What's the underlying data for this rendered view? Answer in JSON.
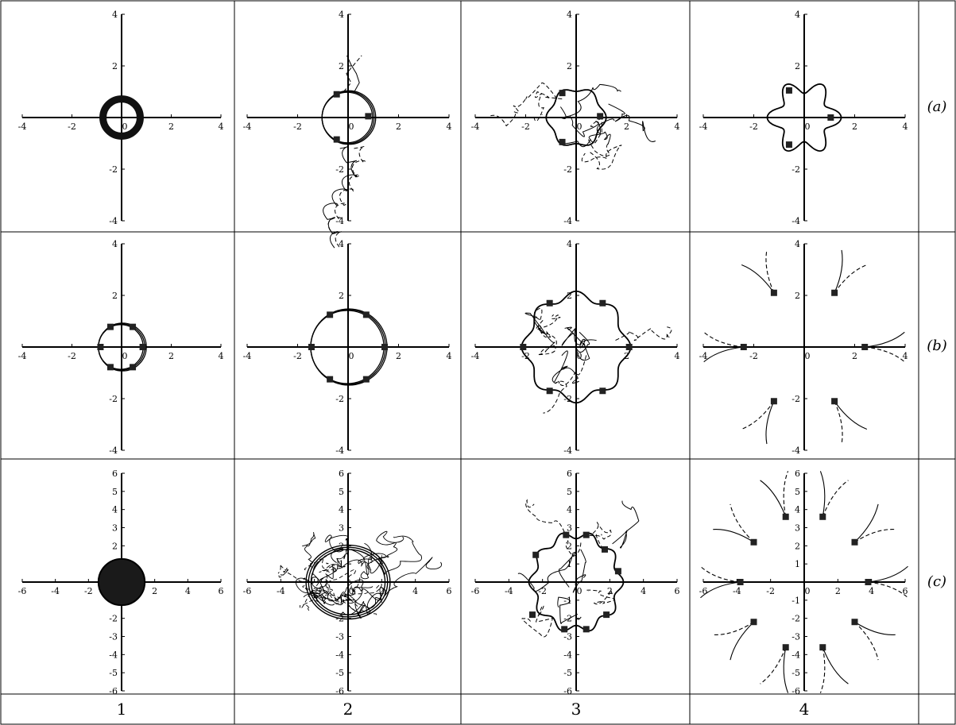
{
  "rows": [
    {
      "label": "(a)"
    },
    {
      "label": "(b)"
    },
    {
      "label": "(c)"
    }
  ],
  "columns": [
    {
      "label": "1"
    },
    {
      "label": "2"
    },
    {
      "label": "3"
    },
    {
      "label": "4"
    }
  ],
  "chart_data": [
    {
      "type": "scatter",
      "row": "(a)",
      "column": "1",
      "xlim": [
        -4,
        4
      ],
      "ylim": [
        -4,
        4
      ],
      "x_ticks": [
        "-4",
        "-2",
        "0",
        "2",
        "4"
      ],
      "y_ticks": [
        "4",
        "2",
        "-2",
        "-4"
      ],
      "curves": [
        {
          "kind": "thick-ring",
          "center": [
            0,
            0
          ],
          "radius": 0.75
        }
      ],
      "squares": []
    },
    {
      "type": "scatter",
      "row": "(a)",
      "column": "2",
      "xlim": [
        -4,
        4
      ],
      "ylim": [
        -4,
        4
      ],
      "x_ticks": [
        "-4",
        "-2",
        "0",
        "2",
        "4"
      ],
      "y_ticks": [
        "4",
        "2",
        "-2",
        "-4"
      ],
      "curves": [
        {
          "kind": "ring",
          "center": [
            0,
            0
          ],
          "radius": 1.0
        },
        {
          "kind": "loops-down",
          "dashed": false
        },
        {
          "kind": "loops-down",
          "dashed": true
        }
      ],
      "squares": [
        [
          -0.45,
          0.9
        ],
        [
          0.8,
          0.05
        ],
        [
          -0.45,
          -0.85
        ]
      ]
    },
    {
      "type": "scatter",
      "row": "(a)",
      "column": "3",
      "xlim": [
        -4,
        4
      ],
      "ylim": [
        -4,
        4
      ],
      "x_ticks": [
        "-4",
        "-2",
        "0",
        "2",
        "4"
      ],
      "y_ticks": [
        "4",
        "2",
        "-2",
        "-4"
      ],
      "curves": [
        {
          "kind": "wavy-ring",
          "center": [
            0,
            0
          ],
          "radius": 1.1,
          "lobes": 6
        }
      ],
      "squares": [
        [
          -0.55,
          0.95
        ],
        [
          0.95,
          0.05
        ],
        [
          -0.55,
          -0.95
        ]
      ]
    },
    {
      "type": "scatter",
      "row": "(a)",
      "column": "4",
      "xlim": [
        -4,
        4
      ],
      "ylim": [
        -4,
        4
      ],
      "x_ticks": [
        "-4",
        "-2",
        "0",
        "2",
        "4"
      ],
      "y_ticks": [
        "4",
        "2",
        "-2",
        "-4"
      ],
      "curves": [
        {
          "kind": "star",
          "center": [
            0,
            0
          ],
          "radius": 1.2,
          "lobes": 6
        }
      ],
      "squares": [
        [
          -0.6,
          1.05
        ],
        [
          1.05,
          0.0
        ],
        [
          -0.6,
          -1.05
        ]
      ]
    },
    {
      "type": "scatter",
      "row": "(b)",
      "column": "1",
      "xlim": [
        -4,
        4
      ],
      "ylim": [
        -4,
        4
      ],
      "x_ticks": [
        "-4",
        "-2",
        "0",
        "2",
        "4"
      ],
      "y_ticks": [
        "4",
        "2",
        "-2",
        "-4"
      ],
      "curves": [
        {
          "kind": "ring",
          "center": [
            0,
            0
          ],
          "radius": 0.9
        }
      ],
      "squares": [
        [
          0.85,
          0
        ],
        [
          0.45,
          0.78
        ],
        [
          -0.45,
          0.78
        ],
        [
          -0.85,
          0
        ],
        [
          -0.45,
          -0.78
        ],
        [
          0.45,
          -0.78
        ]
      ]
    },
    {
      "type": "scatter",
      "row": "(b)",
      "column": "2",
      "xlim": [
        -4,
        4
      ],
      "ylim": [
        -4,
        4
      ],
      "x_ticks": [
        "-4",
        "-2",
        "0",
        "2",
        "4"
      ],
      "y_ticks": [
        "4",
        "2",
        "-2",
        "-4"
      ],
      "curves": [
        {
          "kind": "ring",
          "center": [
            0,
            0
          ],
          "radius": 1.45
        }
      ],
      "squares": [
        [
          1.45,
          0
        ],
        [
          0.72,
          1.25
        ],
        [
          -0.72,
          1.25
        ],
        [
          -1.45,
          0
        ],
        [
          -0.72,
          -1.25
        ],
        [
          0.72,
          -1.25
        ]
      ]
    },
    {
      "type": "scatter",
      "row": "(b)",
      "column": "3",
      "xlim": [
        -4,
        4
      ],
      "ylim": [
        -4,
        4
      ],
      "x_ticks": [
        "-4",
        "-2",
        "0",
        "2",
        "4"
      ],
      "y_ticks": [
        "4",
        "2",
        "-2",
        "-4"
      ],
      "curves": [
        {
          "kind": "wavy-ring",
          "center": [
            0,
            0
          ],
          "radius": 2.0,
          "lobes": 8
        }
      ],
      "squares": [
        [
          2.1,
          0
        ],
        [
          1.05,
          1.7
        ],
        [
          -1.05,
          1.7
        ],
        [
          -2.1,
          0
        ],
        [
          -1.05,
          -1.7
        ],
        [
          1.05,
          -1.7
        ]
      ]
    },
    {
      "type": "scatter",
      "row": "(b)",
      "column": "4",
      "xlim": [
        -4,
        4
      ],
      "ylim": [
        -4,
        4
      ],
      "x_ticks": [
        "-4",
        "-2",
        "0",
        "2",
        "4"
      ],
      "y_ticks": [
        "4",
        "2",
        "-2",
        "-4"
      ],
      "curves": [
        {
          "kind": "radial-arcs"
        }
      ],
      "squares": [
        [
          2.4,
          0
        ],
        [
          1.2,
          2.1
        ],
        [
          -1.2,
          2.1
        ],
        [
          -2.4,
          0
        ],
        [
          -1.2,
          -2.1
        ],
        [
          1.2,
          -2.1
        ]
      ]
    },
    {
      "type": "scatter",
      "row": "(c)",
      "column": "1",
      "xlim": [
        -6,
        6
      ],
      "ylim": [
        -6,
        6
      ],
      "x_ticks": [
        "-6",
        "-4",
        "-2",
        "0",
        "2",
        "4",
        "6"
      ],
      "y_ticks": [
        "6",
        "5",
        "4",
        "3",
        "2",
        "1",
        "-1",
        "-2",
        "-3",
        "-4",
        "-5",
        "-6"
      ],
      "curves": [
        {
          "kind": "filled-disc",
          "center": [
            0,
            0
          ],
          "radius": 1.4
        }
      ],
      "squares": []
    },
    {
      "type": "scatter",
      "row": "(c)",
      "column": "2",
      "xlim": [
        -6,
        6
      ],
      "ylim": [
        -6,
        6
      ],
      "x_ticks": [
        "-6",
        "-4",
        "-2",
        "0",
        "2",
        "4",
        "6"
      ],
      "y_ticks": [
        "6",
        "5",
        "4",
        "3",
        "2",
        "1",
        "-1",
        "-2",
        "-3",
        "-4",
        "-5",
        "-6"
      ],
      "curves": [
        {
          "kind": "tangle"
        }
      ],
      "squares": []
    },
    {
      "type": "scatter",
      "row": "(c)",
      "column": "3",
      "xlim": [
        -6,
        6
      ],
      "ylim": [
        -6,
        6
      ],
      "x_ticks": [
        "-6",
        "-4",
        "-2",
        "0",
        "2",
        "4",
        "6"
      ],
      "y_ticks": [
        "6",
        "5",
        "4",
        "3",
        "2",
        "1",
        "-1",
        "-2",
        "-3",
        "-4",
        "-5",
        "-6"
      ],
      "curves": [
        {
          "kind": "wavy-ring",
          "center": [
            0,
            0
          ],
          "radius": 2.6,
          "lobes": 10
        }
      ],
      "squares": [
        [
          2.5,
          0.6
        ],
        [
          1.7,
          1.8
        ],
        [
          0.6,
          2.6
        ],
        [
          -0.6,
          2.6
        ],
        [
          -2.4,
          1.5
        ],
        [
          -2.6,
          -1.8
        ],
        [
          -0.7,
          -2.6
        ],
        [
          0.6,
          -2.6
        ],
        [
          1.8,
          -1.8
        ]
      ]
    },
    {
      "type": "scatter",
      "row": "(c)",
      "column": "4",
      "xlim": [
        -6,
        6
      ],
      "ylim": [
        -6,
        6
      ],
      "x_ticks": [
        "-6",
        "-4",
        "-2",
        "0",
        "2",
        "4",
        "6"
      ],
      "y_ticks": [
        "6",
        "5",
        "4",
        "3",
        "2",
        "1",
        "-1",
        "-2",
        "-3",
        "-4",
        "-5",
        "-6"
      ],
      "curves": [
        {
          "kind": "radial-arcs-12"
        }
      ],
      "squares": [
        [
          3.8,
          0
        ],
        [
          3.0,
          2.2
        ],
        [
          1.1,
          3.6
        ],
        [
          -1.1,
          3.6
        ],
        [
          -3.0,
          2.2
        ],
        [
          -3.8,
          0
        ],
        [
          -3.0,
          -2.2
        ],
        [
          -1.1,
          -3.6
        ],
        [
          1.1,
          -3.6
        ],
        [
          3.0,
          -2.2
        ]
      ]
    }
  ]
}
